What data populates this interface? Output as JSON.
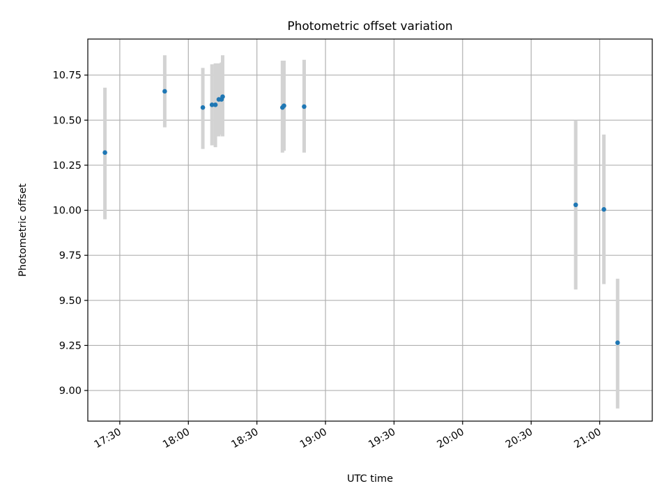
{
  "chart_data": {
    "type": "scatter",
    "title": "Photometric offset variation",
    "xlabel": "UTC time",
    "ylabel": "Photometric offset",
    "x_axis_kind": "time",
    "xlim": [
      "17:16",
      "21:23"
    ],
    "ylim": [
      8.83,
      10.95
    ],
    "grid": true,
    "x_ticks": [
      "17:30",
      "18:00",
      "18:30",
      "19:00",
      "19:30",
      "20:00",
      "20:30",
      "21:00"
    ],
    "y_ticks": [
      "9.00",
      "9.25",
      "9.50",
      "9.75",
      "10.00",
      "10.25",
      "10.50",
      "10.75"
    ],
    "marker_color": "#1f77b4",
    "errorbar_color": "#d3d3d3",
    "series": [
      {
        "points": [
          {
            "x": "17:23:30",
            "y": 10.32,
            "ylo": 9.95,
            "yhi": 10.68
          },
          {
            "x": "17:49:40",
            "y": 10.66,
            "ylo": 10.46,
            "yhi": 10.86
          },
          {
            "x": "18:06:20",
            "y": 10.57,
            "ylo": 10.34,
            "yhi": 10.79
          },
          {
            "x": "18:10:20",
            "y": 10.585,
            "ylo": 10.36,
            "yhi": 10.81
          },
          {
            "x": "18:11:50",
            "y": 10.585,
            "ylo": 10.35,
            "yhi": 10.815
          },
          {
            "x": "18:13:20",
            "y": 10.615,
            "ylo": 10.41,
            "yhi": 10.815
          },
          {
            "x": "18:14:30",
            "y": 10.615,
            "ylo": 10.42,
            "yhi": 10.82
          },
          {
            "x": "18:15:00",
            "y": 10.63,
            "ylo": 10.41,
            "yhi": 10.86
          },
          {
            "x": "18:41:10",
            "y": 10.57,
            "ylo": 10.32,
            "yhi": 10.83
          },
          {
            "x": "18:41:50",
            "y": 10.58,
            "ylo": 10.33,
            "yhi": 10.83
          },
          {
            "x": "18:50:40",
            "y": 10.575,
            "ylo": 10.32,
            "yhi": 10.835
          },
          {
            "x": "20:49:30",
            "y": 10.03,
            "ylo": 9.56,
            "yhi": 10.5
          },
          {
            "x": "21:01:50",
            "y": 10.005,
            "ylo": 9.59,
            "yhi": 10.42
          },
          {
            "x": "21:07:50",
            "y": 9.265,
            "ylo": 8.9,
            "yhi": 9.62
          }
        ]
      }
    ]
  }
}
